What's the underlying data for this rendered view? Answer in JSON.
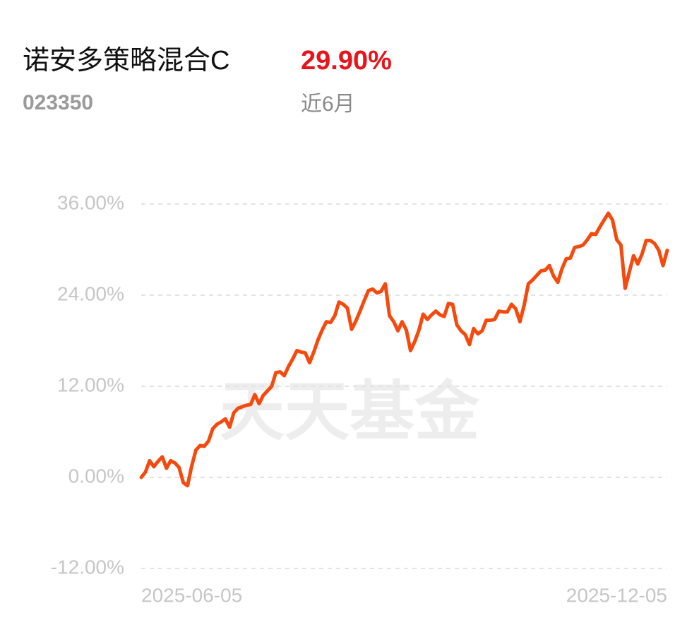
{
  "header": {
    "fund_name": "诺安多策略混合C",
    "return": "29.90%",
    "code": "023350",
    "period": "近6月"
  },
  "chart_data": {
    "type": "line",
    "watermark": "天天基金",
    "categories": [
      "2025-06-05",
      null,
      null,
      null,
      null,
      null,
      null,
      null,
      null,
      null,
      null,
      null,
      null,
      null,
      null,
      null,
      null,
      null,
      null,
      null,
      null,
      null,
      null,
      null,
      null,
      null,
      null,
      null,
      null,
      null,
      null,
      null,
      null,
      null,
      null,
      null,
      null,
      null,
      null,
      null,
      null,
      null,
      null,
      null,
      null,
      null,
      null,
      null,
      null,
      null,
      null,
      null,
      null,
      null,
      null,
      null,
      null,
      null,
      null,
      null,
      null,
      null,
      null,
      null,
      null,
      null,
      null,
      null,
      null,
      null,
      null,
      null,
      null,
      null,
      null,
      null,
      null,
      null,
      null,
      null,
      null,
      null,
      null,
      null,
      null,
      null,
      null,
      null,
      null,
      null,
      null,
      null,
      null,
      null,
      null,
      null,
      null,
      null,
      null,
      null,
      null,
      null,
      null,
      null,
      null,
      null,
      null,
      null,
      null,
      null,
      null,
      null,
      null,
      null,
      null,
      null,
      null,
      null,
      null,
      null,
      null,
      null,
      null,
      null,
      null,
      "2025-12-05"
    ],
    "values": [
      0,
      0.7,
      2.2,
      1.4,
      2.1,
      2.7,
      1.2,
      2.2,
      1.9,
      1.3,
      -0.7,
      -1.1,
      1.5,
      3.6,
      4.2,
      4.1,
      4.8,
      6.4,
      7.0,
      7.3,
      7.7,
      6.6,
      8.5,
      9.1,
      9.3,
      9.5,
      9.6,
      10.9,
      9.7,
      10.8,
      11.4,
      12.0,
      13.8,
      13.9,
      13.4,
      14.6,
      15.6,
      16.7,
      16.5,
      16.4,
      15.1,
      16.5,
      18.1,
      19.4,
      20.5,
      20.4,
      21.3,
      23.1,
      22.8,
      22.3,
      19.5,
      20.6,
      21.9,
      23.3,
      24.6,
      24.8,
      24.3,
      24.5,
      25.5,
      21.3,
      20.5,
      19.3,
      20.5,
      19.4,
      16.7,
      17.9,
      19.4,
      21.5,
      20.8,
      21.4,
      21.9,
      21.4,
      21.2,
      22.9,
      22.8,
      20.1,
      19.3,
      18.8,
      17.5,
      19.6,
      18.9,
      19.3,
      20.7,
      20.7,
      20.8,
      21.9,
      21.8,
      21.8,
      22.8,
      22.2,
      20.5,
      22.7,
      25.5,
      26.0,
      26.6,
      27.2,
      27.3,
      27.9,
      26.5,
      25.7,
      27.5,
      28.8,
      28.9,
      30.3,
      30.4,
      30.6,
      31.3,
      32.1,
      32.0,
      33.0,
      33.9,
      34.8,
      33.9,
      31.3,
      30.6,
      24.9,
      27.1,
      29.2,
      28.1,
      29.4,
      31.2,
      31.2,
      30.8,
      29.9,
      27.9,
      29.9
    ],
    "color": "#f54a0e",
    "ylim": [
      -12,
      36
    ],
    "yticks": [
      {
        "value": -12,
        "label": "-12.00%"
      },
      {
        "value": 0,
        "label": "0.00%"
      },
      {
        "value": 12,
        "label": "12.00%"
      },
      {
        "value": 24,
        "label": "24.00%"
      },
      {
        "value": 36,
        "label": "36.00%"
      }
    ],
    "grid": true
  }
}
